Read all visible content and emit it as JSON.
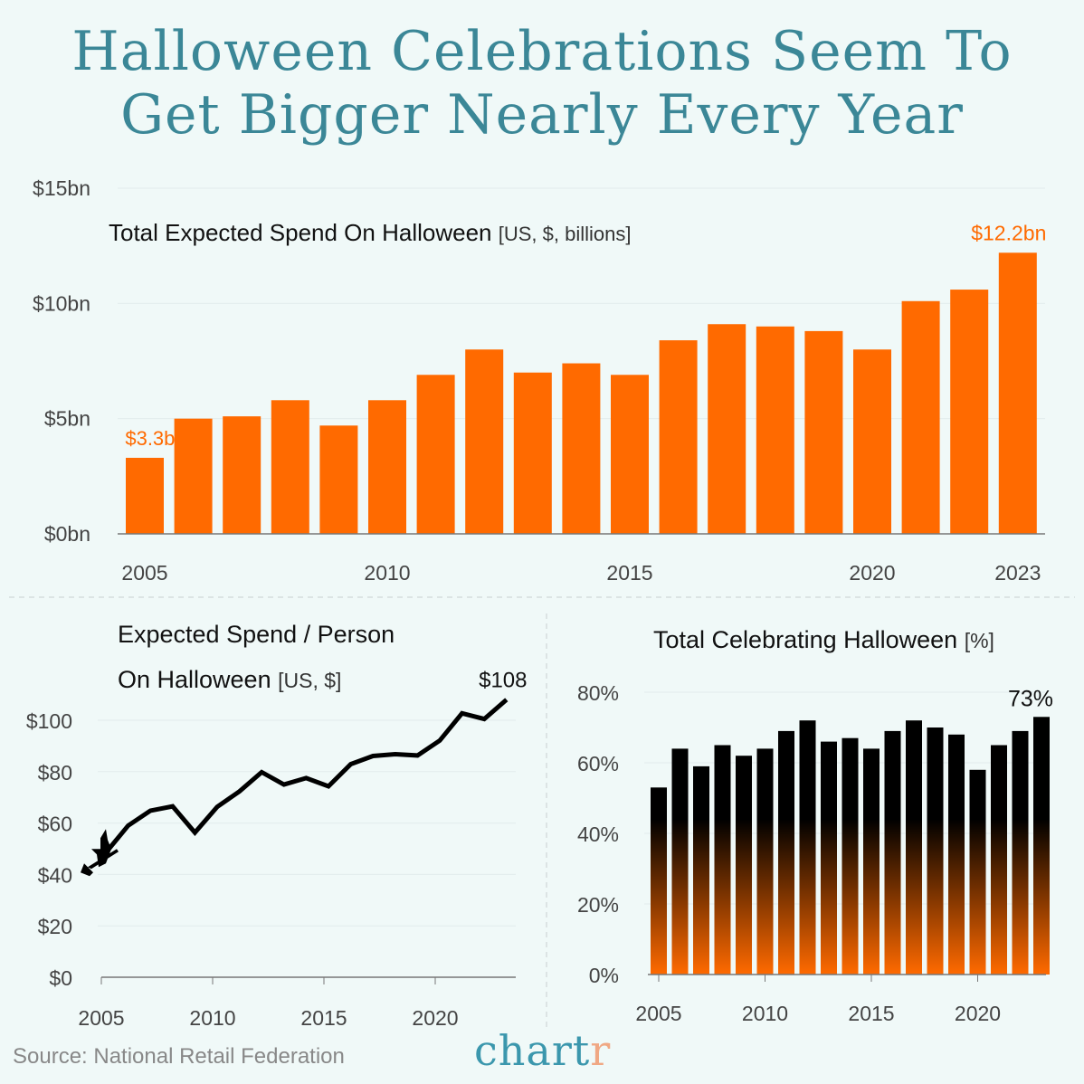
{
  "title_line1": "Halloween Celebrations Seem To",
  "title_line2": "Get Bigger Nearly Every Year",
  "source": "Source: National Retail Federation",
  "logo": {
    "main": "chart",
    "accent": "r"
  },
  "colors": {
    "orange": "#ff6a00",
    "teal": "#3b8797",
    "black": "#000000"
  },
  "chart_data": [
    {
      "type": "bar",
      "title": "Total Expected Spend On Halloween",
      "subtitle": "[US, $, billions]",
      "categories": [
        2005,
        2006,
        2007,
        2008,
        2009,
        2010,
        2011,
        2012,
        2013,
        2014,
        2015,
        2016,
        2017,
        2018,
        2019,
        2020,
        2021,
        2022,
        2023
      ],
      "values": [
        3.3,
        5.0,
        5.1,
        5.8,
        4.7,
        5.8,
        6.9,
        8.0,
        7.0,
        7.4,
        6.9,
        8.4,
        9.1,
        9.0,
        8.8,
        8.0,
        10.1,
        10.6,
        12.2
      ],
      "ylim": [
        0,
        15
      ],
      "yticks": [
        "$0bn",
        "$5bn",
        "$10bn",
        "$15bn"
      ],
      "xticks": [
        "2005",
        "2010",
        "2015",
        "2020",
        "2023"
      ],
      "annotations": {
        "first": "$3.3bn",
        "last": "$12.2bn"
      },
      "color": "#ff6a00"
    },
    {
      "type": "line",
      "title_line1": "Expected Spend / Person",
      "title_line2": "On Halloween",
      "subtitle": "[US, $]",
      "x": [
        2005,
        2006,
        2007,
        2008,
        2009,
        2010,
        2011,
        2012,
        2013,
        2014,
        2015,
        2016,
        2017,
        2018,
        2019,
        2020,
        2021,
        2022,
        2023
      ],
      "values": [
        48.5,
        59,
        64.8,
        66.5,
        56.3,
        66.3,
        72.3,
        79.8,
        75,
        77.5,
        74.3,
        82.9,
        86.1,
        86.8,
        86.3,
        92.1,
        102.7,
        100.5,
        108
      ],
      "ylim": [
        0,
        110
      ],
      "yticks": [
        "$0",
        "$20",
        "$40",
        "$60",
        "$80",
        "$100"
      ],
      "xticks": [
        "2005",
        "2010",
        "2015",
        "2020"
      ],
      "annotation": "$108",
      "icon": "witch-on-broom-icon",
      "color": "#000000"
    },
    {
      "type": "bar",
      "title": "Total Celebrating Halloween",
      "subtitle": "[%]",
      "categories": [
        2005,
        2006,
        2007,
        2008,
        2009,
        2010,
        2011,
        2012,
        2013,
        2014,
        2015,
        2016,
        2017,
        2018,
        2019,
        2020,
        2021,
        2022,
        2023
      ],
      "values": [
        53,
        64,
        59,
        65,
        62,
        64,
        69,
        72,
        66,
        67,
        64,
        69,
        72,
        70,
        68,
        58,
        65,
        69,
        73
      ],
      "ylim": [
        0,
        80
      ],
      "yticks": [
        "0%",
        "20%",
        "40%",
        "60%",
        "80%"
      ],
      "xticks": [
        "2005",
        "2010",
        "2015",
        "2020"
      ],
      "annotation": "73%",
      "gradient": [
        "#ff6a00",
        "#000000"
      ]
    }
  ]
}
